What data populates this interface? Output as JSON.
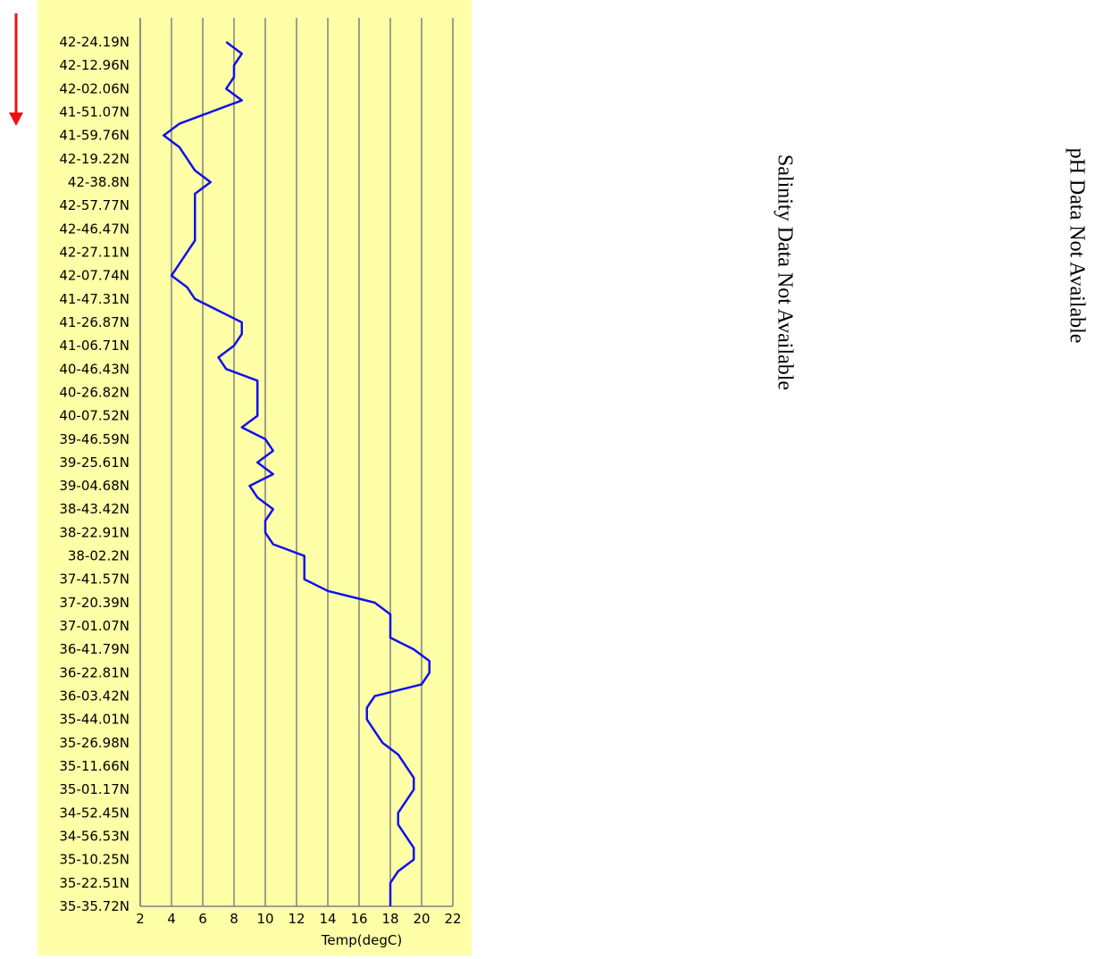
{
  "chart_data": {
    "type": "line",
    "orientation": "horizontal",
    "xlabel": "Temp(degC)",
    "annotations": [
      "Salinity Data Not Available",
      "pH Data Not Available"
    ],
    "categories": [
      "42-24.19N",
      null,
      "42-12.96N",
      null,
      "42-02.06N",
      null,
      "41-51.07N",
      null,
      "41-59.76N",
      null,
      "42-19.22N",
      null,
      "42-38.8N",
      null,
      "42-57.77N",
      null,
      "42-46.47N",
      null,
      "42-27.11N",
      null,
      "42-07.74N",
      null,
      "41-47.31N",
      null,
      "41-26.87N",
      null,
      "41-06.71N",
      null,
      "40-46.43N",
      null,
      "40-26.82N",
      null,
      "40-07.52N",
      null,
      "39-46.59N",
      null,
      "39-25.61N",
      null,
      "39-04.68N",
      null,
      "38-43.42N",
      null,
      "38-22.91N",
      null,
      "38-02.2N",
      null,
      "37-41.57N",
      null,
      "37-20.39N",
      null,
      "37-01.07N",
      null,
      "36-41.79N",
      null,
      "36-22.81N",
      null,
      "36-03.42N",
      null,
      "35-44.01N",
      null,
      "35-26.98N",
      null,
      "35-11.66N",
      null,
      "35-01.17N",
      null,
      "34-52.45N",
      null,
      "34-56.53N",
      null,
      "35-10.25N",
      null,
      "35-22.51N",
      null,
      "35-35.72N"
    ],
    "series": [
      {
        "color": "#1010ee",
        "values": [
          7.5,
          8.5,
          8,
          8,
          7.5,
          8.5,
          6.5,
          4.5,
          3.5,
          4.5,
          5,
          5.5,
          6.5,
          5.5,
          5.5,
          5.5,
          5.5,
          5.5,
          5,
          4.5,
          4,
          5,
          5.5,
          7,
          8.5,
          8.5,
          8,
          7,
          7.5,
          9.5,
          9.5,
          9.5,
          9.5,
          8.5,
          10,
          10.5,
          9.5,
          10.5,
          9,
          9.5,
          10.5,
          10,
          10,
          10.5,
          12.5,
          12.5,
          12.5,
          14,
          17,
          18,
          18,
          18,
          19.5,
          20.5,
          20.5,
          20,
          17,
          16.5,
          16.5,
          17,
          17.5,
          18.5,
          19,
          19.5,
          19.5,
          19,
          18.5,
          18.5,
          19,
          19.5,
          19.5,
          18.5,
          18,
          18,
          18
        ]
      }
    ],
    "xlim": [
      2,
      22
    ],
    "xticks": [
      2,
      4,
      6,
      8,
      10,
      12,
      14,
      16,
      18,
      20,
      22
    ],
    "grid": true
  }
}
